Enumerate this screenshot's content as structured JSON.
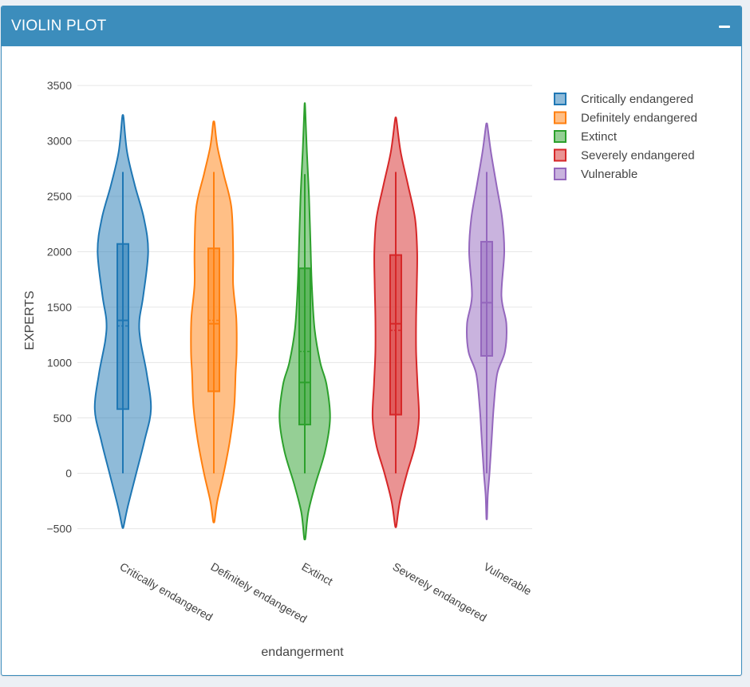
{
  "panel": {
    "title": "VIOLIN PLOT",
    "collapse_icon": "minus-icon"
  },
  "colors": {
    "header": "#3c8dbc",
    "Critically endangered": "#1f77b4",
    "Definitely endangered": "#ff7f0e",
    "Extinct": "#2ca02c",
    "Severely endangered": "#d62728",
    "Vulnerable": "#9467bd"
  },
  "chart_data": {
    "type": "violin",
    "xlabel": "endangerment",
    "ylabel": "EXPERTS",
    "ylim": [
      -560,
      3580
    ],
    "yticks": [
      -500,
      0,
      500,
      1000,
      1500,
      2000,
      2500,
      3000,
      3500
    ],
    "ytick_labels": [
      "−500",
      "0",
      "500",
      "1000",
      "1500",
      "2000",
      "2500",
      "3000",
      "3500"
    ],
    "categories": [
      "Critically endangered",
      "Definitely endangered",
      "Extinct",
      "Severely endangered",
      "Vulnerable"
    ],
    "grid": true,
    "legend_position": "top-right",
    "series": [
      {
        "name": "Critically endangered",
        "min": 0,
        "q1": 580,
        "median": 1380,
        "mean": 1330,
        "q3": 2070,
        "max": 2720,
        "kde_min": -480,
        "kde_max": 3210,
        "density": [
          [
            -480,
            0.02
          ],
          [
            -300,
            0.14
          ],
          [
            0,
            0.38
          ],
          [
            300,
            0.62
          ],
          [
            580,
            0.8
          ],
          [
            900,
            0.68
          ],
          [
            1200,
            0.5
          ],
          [
            1380,
            0.47
          ],
          [
            1600,
            0.58
          ],
          [
            2000,
            0.72
          ],
          [
            2300,
            0.6
          ],
          [
            2600,
            0.34
          ],
          [
            2900,
            0.12
          ],
          [
            3210,
            0.02
          ]
        ]
      },
      {
        "name": "Definitely endangered",
        "min": 0,
        "q1": 740,
        "median": 1350,
        "mean": 1380,
        "q3": 2030,
        "max": 2720,
        "kde_min": -430,
        "kde_max": 3160,
        "density": [
          [
            -430,
            0.02
          ],
          [
            -250,
            0.1
          ],
          [
            0,
            0.28
          ],
          [
            300,
            0.46
          ],
          [
            600,
            0.58
          ],
          [
            900,
            0.62
          ],
          [
            1100,
            0.65
          ],
          [
            1400,
            0.64
          ],
          [
            1700,
            0.55
          ],
          [
            2000,
            0.55
          ],
          [
            2400,
            0.5
          ],
          [
            2700,
            0.28
          ],
          [
            2950,
            0.1
          ],
          [
            3160,
            0.02
          ]
        ]
      },
      {
        "name": "Extinct",
        "min": 0,
        "q1": 440,
        "median": 820,
        "mean": 1100,
        "q3": 1850,
        "max": 2700,
        "kde_min": -580,
        "kde_max": 3310,
        "density": [
          [
            -580,
            0.02
          ],
          [
            -350,
            0.1
          ],
          [
            -100,
            0.3
          ],
          [
            200,
            0.58
          ],
          [
            500,
            0.72
          ],
          [
            800,
            0.62
          ],
          [
            1000,
            0.44
          ],
          [
            1300,
            0.28
          ],
          [
            1700,
            0.2
          ],
          [
            2100,
            0.16
          ],
          [
            2500,
            0.12
          ],
          [
            2900,
            0.06
          ],
          [
            3310,
            0.01
          ]
        ]
      },
      {
        "name": "Severely endangered",
        "min": 0,
        "q1": 530,
        "median": 1350,
        "mean": 1290,
        "q3": 1970,
        "max": 2720,
        "kde_min": -470,
        "kde_max": 3190,
        "density": [
          [
            -470,
            0.02
          ],
          [
            -250,
            0.12
          ],
          [
            0,
            0.32
          ],
          [
            250,
            0.55
          ],
          [
            500,
            0.66
          ],
          [
            800,
            0.62
          ],
          [
            1100,
            0.58
          ],
          [
            1400,
            0.58
          ],
          [
            1700,
            0.6
          ],
          [
            2000,
            0.61
          ],
          [
            2300,
            0.55
          ],
          [
            2600,
            0.35
          ],
          [
            2900,
            0.14
          ],
          [
            3190,
            0.02
          ]
        ]
      },
      {
        "name": "Vulnerable",
        "min": 0,
        "q1": 1060,
        "median": 1540,
        "mean": 1540,
        "q3": 2090,
        "max": 2720,
        "kde_min": -400,
        "kde_max": 3140,
        "density": [
          [
            -400,
            0.01
          ],
          [
            -200,
            0.03
          ],
          [
            0,
            0.08
          ],
          [
            300,
            0.14
          ],
          [
            600,
            0.2
          ],
          [
            900,
            0.3
          ],
          [
            1100,
            0.52
          ],
          [
            1350,
            0.56
          ],
          [
            1600,
            0.42
          ],
          [
            2000,
            0.5
          ],
          [
            2300,
            0.44
          ],
          [
            2600,
            0.28
          ],
          [
            2900,
            0.12
          ],
          [
            3140,
            0.02
          ]
        ]
      }
    ]
  }
}
